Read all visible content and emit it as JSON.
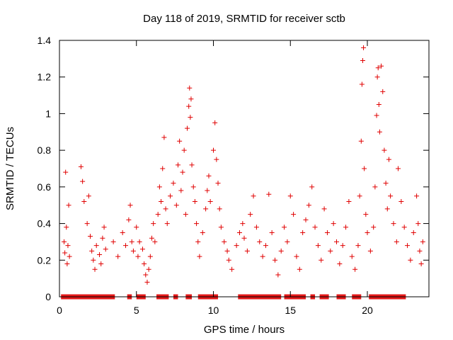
{
  "chart_data": {
    "type": "scatter",
    "title": "Day 118 of 2019, SRMTID for receiver sctb",
    "xlabel": "GPS time / hours",
    "ylabel": "SRMTID / TECUs",
    "xlim": [
      0,
      24
    ],
    "ylim": [
      0,
      1.4
    ],
    "xticks": [
      0,
      5,
      10,
      15,
      20
    ],
    "yticks": [
      0,
      0.2,
      0.4,
      0.6,
      0.8,
      1,
      1.2,
      1.4
    ],
    "ytick_labels": [
      "0",
      "0.2",
      "0.4",
      "0.6",
      "0.8",
      "1",
      "1.2",
      "1.4"
    ],
    "grid": false,
    "marker": "+",
    "series": [
      {
        "name": "SRMTID",
        "color": "#e00000",
        "points": [
          [
            0.3,
            0.3
          ],
          [
            0.35,
            0.24
          ],
          [
            0.4,
            0.68
          ],
          [
            0.45,
            0.38
          ],
          [
            0.5,
            0.18
          ],
          [
            0.55,
            0.28
          ],
          [
            0.6,
            0.5
          ],
          [
            0.65,
            0.22
          ],
          [
            1.4,
            0.71
          ],
          [
            1.5,
            0.63
          ],
          [
            1.6,
            0.52
          ],
          [
            1.8,
            0.4
          ],
          [
            1.9,
            0.55
          ],
          [
            2.0,
            0.33
          ],
          [
            2.1,
            0.25
          ],
          [
            2.2,
            0.2
          ],
          [
            2.3,
            0.15
          ],
          [
            2.4,
            0.28
          ],
          [
            2.6,
            0.23
          ],
          [
            2.7,
            0.18
          ],
          [
            2.8,
            0.32
          ],
          [
            2.9,
            0.38
          ],
          [
            3.0,
            0.26
          ],
          [
            3.5,
            0.3
          ],
          [
            3.8,
            0.22
          ],
          [
            4.1,
            0.35
          ],
          [
            4.3,
            0.28
          ],
          [
            4.5,
            0.42
          ],
          [
            4.6,
            0.5
          ],
          [
            4.7,
            0.3
          ],
          [
            4.8,
            0.25
          ],
          [
            5.0,
            0.38
          ],
          [
            5.1,
            0.22
          ],
          [
            5.2,
            0.3
          ],
          [
            5.4,
            0.26
          ],
          [
            5.5,
            0.18
          ],
          [
            5.6,
            0.12
          ],
          [
            5.7,
            0.08
          ],
          [
            5.8,
            0.15
          ],
          [
            5.9,
            0.22
          ],
          [
            6.0,
            0.32
          ],
          [
            6.1,
            0.4
          ],
          [
            6.2,
            0.3
          ],
          [
            6.4,
            0.45
          ],
          [
            6.5,
            0.6
          ],
          [
            6.6,
            0.52
          ],
          [
            6.7,
            0.7
          ],
          [
            6.8,
            0.87
          ],
          [
            6.9,
            0.48
          ],
          [
            7.0,
            0.4
          ],
          [
            7.2,
            0.55
          ],
          [
            7.4,
            0.62
          ],
          [
            7.6,
            0.5
          ],
          [
            7.7,
            0.72
          ],
          [
            7.8,
            0.85
          ],
          [
            7.9,
            0.58
          ],
          [
            8.0,
            0.68
          ],
          [
            8.1,
            0.8
          ],
          [
            8.2,
            0.45
          ],
          [
            8.3,
            0.92
          ],
          [
            8.4,
            1.04
          ],
          [
            8.45,
            1.14
          ],
          [
            8.5,
            0.98
          ],
          [
            8.55,
            1.08
          ],
          [
            8.6,
            0.72
          ],
          [
            8.7,
            0.6
          ],
          [
            8.8,
            0.52
          ],
          [
            8.9,
            0.4
          ],
          [
            9.0,
            0.3
          ],
          [
            9.1,
            0.22
          ],
          [
            9.3,
            0.35
          ],
          [
            9.5,
            0.48
          ],
          [
            9.6,
            0.58
          ],
          [
            9.7,
            0.66
          ],
          [
            9.8,
            0.52
          ],
          [
            10.0,
            0.8
          ],
          [
            10.1,
            0.95
          ],
          [
            10.2,
            0.75
          ],
          [
            10.3,
            0.62
          ],
          [
            10.4,
            0.48
          ],
          [
            10.5,
            0.38
          ],
          [
            10.7,
            0.3
          ],
          [
            10.9,
            0.25
          ],
          [
            11.0,
            0.2
          ],
          [
            11.2,
            0.15
          ],
          [
            11.5,
            0.28
          ],
          [
            11.7,
            0.35
          ],
          [
            11.9,
            0.4
          ],
          [
            12.0,
            0.32
          ],
          [
            12.2,
            0.25
          ],
          [
            12.4,
            0.45
          ],
          [
            12.6,
            0.55
          ],
          [
            12.8,
            0.38
          ],
          [
            13.0,
            0.3
          ],
          [
            13.2,
            0.22
          ],
          [
            13.4,
            0.28
          ],
          [
            13.6,
            0.56
          ],
          [
            13.8,
            0.35
          ],
          [
            14.0,
            0.2
          ],
          [
            14.2,
            0.12
          ],
          [
            14.4,
            0.25
          ],
          [
            14.6,
            0.38
          ],
          [
            14.8,
            0.3
          ],
          [
            15.0,
            0.55
          ],
          [
            15.2,
            0.45
          ],
          [
            15.4,
            0.22
          ],
          [
            15.6,
            0.15
          ],
          [
            15.8,
            0.35
          ],
          [
            16.0,
            0.42
          ],
          [
            16.2,
            0.5
          ],
          [
            16.4,
            0.6
          ],
          [
            16.6,
            0.38
          ],
          [
            16.8,
            0.28
          ],
          [
            17.0,
            0.2
          ],
          [
            17.2,
            0.48
          ],
          [
            17.4,
            0.35
          ],
          [
            17.6,
            0.25
          ],
          [
            17.8,
            0.4
          ],
          [
            18.0,
            0.3
          ],
          [
            18.2,
            0.18
          ],
          [
            18.4,
            0.28
          ],
          [
            18.6,
            0.38
          ],
          [
            18.8,
            0.52
          ],
          [
            19.0,
            0.22
          ],
          [
            19.2,
            0.15
          ],
          [
            19.4,
            0.28
          ],
          [
            19.5,
            0.55
          ],
          [
            19.6,
            0.85
          ],
          [
            19.65,
            1.16
          ],
          [
            19.7,
            1.29
          ],
          [
            19.75,
            1.36
          ],
          [
            19.8,
            0.7
          ],
          [
            19.9,
            0.45
          ],
          [
            20.0,
            0.35
          ],
          [
            20.2,
            0.25
          ],
          [
            20.4,
            0.38
          ],
          [
            20.5,
            0.6
          ],
          [
            20.6,
            0.99
          ],
          [
            20.65,
            1.2
          ],
          [
            20.7,
            1.25
          ],
          [
            20.75,
            1.05
          ],
          [
            20.8,
            0.9
          ],
          [
            20.9,
            1.26
          ],
          [
            21.0,
            1.12
          ],
          [
            21.1,
            0.8
          ],
          [
            21.2,
            0.62
          ],
          [
            21.3,
            0.48
          ],
          [
            21.4,
            0.75
          ],
          [
            21.5,
            0.55
          ],
          [
            21.7,
            0.4
          ],
          [
            21.9,
            0.3
          ],
          [
            22.0,
            0.7
          ],
          [
            22.2,
            0.52
          ],
          [
            22.4,
            0.38
          ],
          [
            22.6,
            0.28
          ],
          [
            22.8,
            0.2
          ],
          [
            23.0,
            0.35
          ],
          [
            23.2,
            0.55
          ],
          [
            23.3,
            0.4
          ],
          [
            23.4,
            0.25
          ],
          [
            23.5,
            0.18
          ],
          [
            23.6,
            0.3
          ]
        ]
      }
    ],
    "zero_runs_hours": [
      [
        0.1,
        3.6
      ],
      [
        4.4,
        4.7
      ],
      [
        5.0,
        5.6
      ],
      [
        6.3,
        7.1
      ],
      [
        7.4,
        7.7
      ],
      [
        8.2,
        8.6
      ],
      [
        9.0,
        10.3
      ],
      [
        11.6,
        14.4
      ],
      [
        14.6,
        16.0
      ],
      [
        16.3,
        16.6
      ],
      [
        16.9,
        17.5
      ],
      [
        18.0,
        18.6
      ],
      [
        19.0,
        19.6
      ],
      [
        20.1,
        22.5
      ]
    ]
  }
}
